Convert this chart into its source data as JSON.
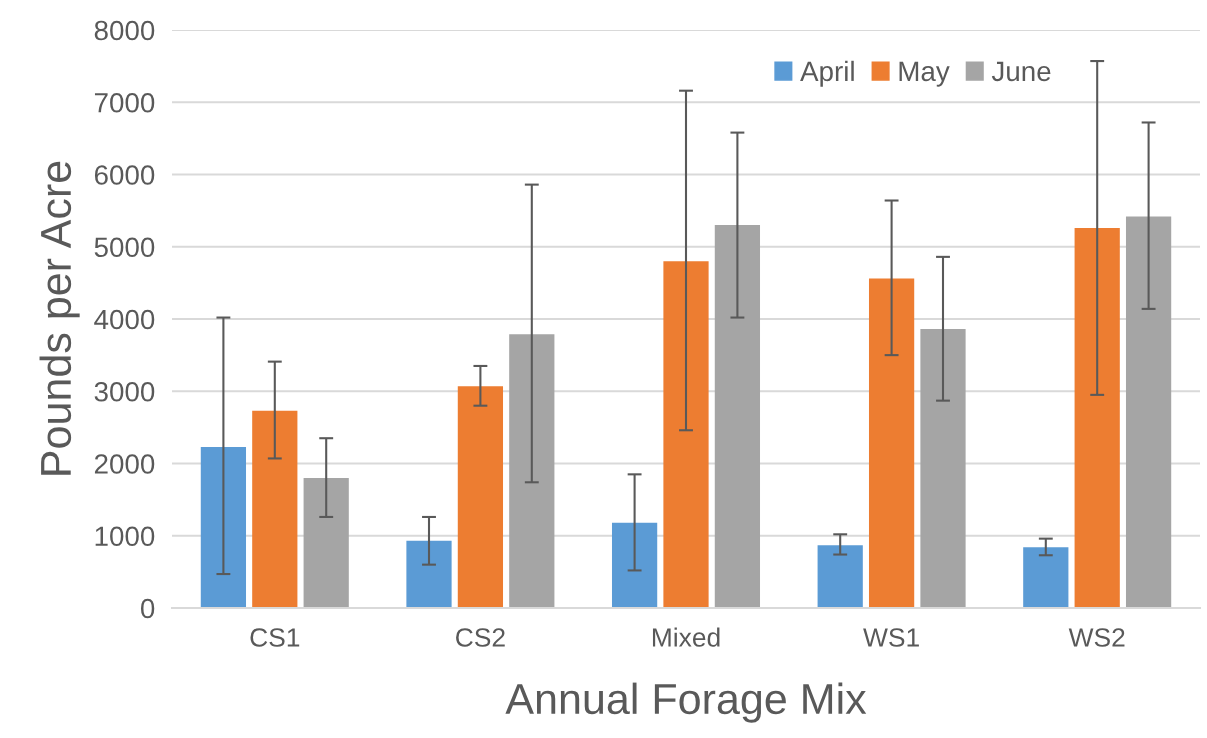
{
  "chart_data": {
    "type": "bar",
    "xlabel": "Annual Forage Mix",
    "ylabel": "Pounds per Acre",
    "categories": [
      "CS1",
      "CS2",
      "Mixed",
      "WS1",
      "WS2"
    ],
    "series": [
      {
        "name": "April",
        "color": "#5b9bd5",
        "values": [
          2230,
          930,
          1180,
          870,
          840
        ],
        "errors": [
          [
            470,
            4020
          ],
          [
            600,
            1260
          ],
          [
            520,
            1850
          ],
          [
            740,
            1020
          ],
          [
            730,
            960
          ]
        ]
      },
      {
        "name": "May",
        "color": "#ed7d31",
        "values": [
          2730,
          3070,
          4800,
          4560,
          5260
        ],
        "errors": [
          [
            2070,
            3410
          ],
          [
            2800,
            3350
          ],
          [
            2460,
            7160
          ],
          [
            3500,
            5640
          ],
          [
            2950,
            7570
          ]
        ]
      },
      {
        "name": "June",
        "color": "#a5a5a5",
        "values": [
          1800,
          3790,
          5300,
          3860,
          5420
        ],
        "errors": [
          [
            1260,
            2350
          ],
          [
            1740,
            5860
          ],
          [
            4020,
            6580
          ],
          [
            2870,
            4860
          ],
          [
            4140,
            6720
          ]
        ]
      }
    ],
    "ylim": [
      0,
      8000
    ],
    "yticks": [
      0,
      1000,
      2000,
      3000,
      4000,
      5000,
      6000,
      7000,
      8000
    ],
    "grid": "y",
    "legend": "top right"
  }
}
